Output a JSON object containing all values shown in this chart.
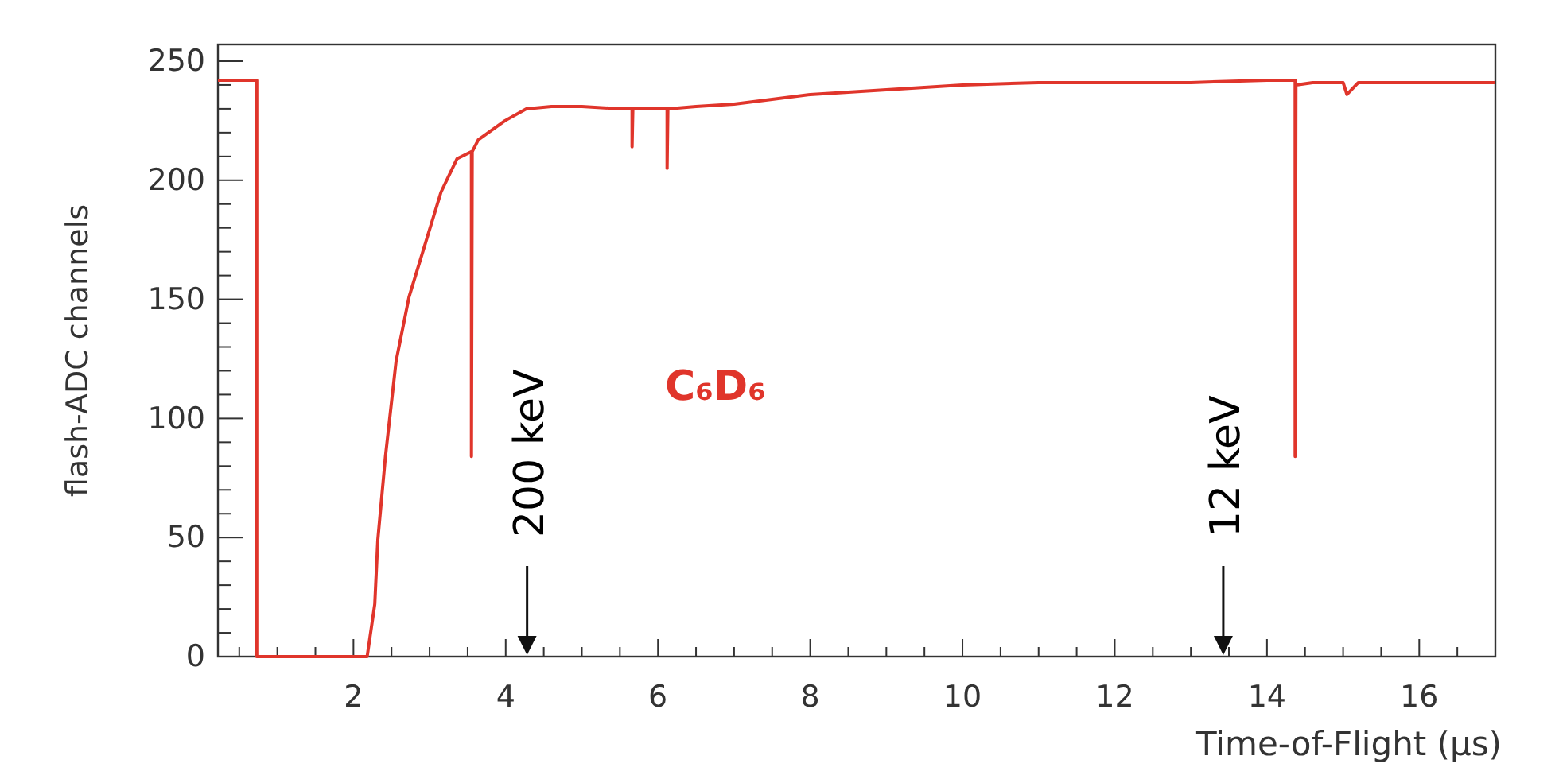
{
  "chart_data": {
    "type": "line",
    "xlabel": "Time-of-Flight (μs)",
    "ylabel": "flash-ADC channels",
    "xlim": [
      0.22,
      17
    ],
    "ylim": [
      0,
      257
    ],
    "xticks": [
      {
        "value": 0.5,
        "label": null
      },
      {
        "value": 1,
        "label": null
      },
      {
        "value": 1.5,
        "label": null
      },
      2,
      {
        "value": 2.5,
        "label": null
      },
      {
        "value": 3,
        "label": null
      },
      {
        "value": 3.5,
        "label": null
      },
      4,
      {
        "value": 4.5,
        "label": null
      },
      {
        "value": 5,
        "label": null
      },
      {
        "value": 5.5,
        "label": null
      },
      6,
      {
        "value": 6.5,
        "label": null
      },
      {
        "value": 7,
        "label": null
      },
      {
        "value": 7.5,
        "label": null
      },
      8,
      {
        "value": 8.5,
        "label": null
      },
      {
        "value": 9,
        "label": null
      },
      {
        "value": 9.5,
        "label": null
      },
      10,
      {
        "value": 10.5,
        "label": null
      },
      {
        "value": 11,
        "label": null
      },
      {
        "value": 11.5,
        "label": null
      },
      12,
      {
        "value": 12.5,
        "label": null
      },
      {
        "value": 13,
        "label": null
      },
      {
        "value": 13.5,
        "label": null
      },
      14,
      {
        "value": 14.5,
        "label": null
      },
      {
        "value": 15,
        "label": null
      },
      {
        "value": 15.5,
        "label": null
      },
      16,
      {
        "value": 16.5,
        "label": null
      },
      {
        "value": 17,
        "label": null
      }
    ],
    "yticks": [
      0,
      {
        "value": 10,
        "label": null
      },
      {
        "value": 20,
        "label": null
      },
      {
        "value": 30,
        "label": null
      },
      {
        "value": 40,
        "label": null
      },
      50,
      {
        "value": 60,
        "label": null
      },
      {
        "value": 70,
        "label": null
      },
      {
        "value": 80,
        "label": null
      },
      {
        "value": 90,
        "label": null
      },
      100,
      {
        "value": 110,
        "label": null
      },
      {
        "value": 120,
        "label": null
      },
      {
        "value": 130,
        "label": null
      },
      {
        "value": 140,
        "label": null
      },
      150,
      {
        "value": 160,
        "label": null
      },
      {
        "value": 170,
        "label": null
      },
      {
        "value": 180,
        "label": null
      },
      {
        "value": 190,
        "label": null
      },
      200,
      {
        "value": 210,
        "label": null
      },
      {
        "value": 220,
        "label": null
      },
      {
        "value": 230,
        "label": null
      },
      {
        "value": 240,
        "label": null
      },
      250
    ],
    "grid": false,
    "legend": false,
    "marker": "none",
    "line_style": "solid",
    "series": [
      {
        "name": "C₆D₆",
        "color": "#e0352b",
        "x": [
          0.22,
          0.73,
          0.73,
          2.18,
          2.28,
          2.32,
          2.42,
          2.56,
          2.73,
          2.94,
          3.15,
          3.36,
          3.55,
          3.55,
          3.56,
          3.64,
          3.99,
          4.27,
          4.6,
          5,
          5.5,
          5.66,
          5.66,
          5.67,
          6,
          6.12,
          6.12,
          6.13,
          6.5,
          7,
          7.5,
          8,
          9,
          10,
          11,
          12,
          13,
          14,
          14.37,
          14.37,
          14.38,
          14.6,
          15,
          15.05,
          15.2,
          16,
          17
        ],
        "values": [
          242,
          242,
          0,
          0,
          22,
          49,
          84,
          124,
          151,
          173,
          195,
          209,
          212,
          84,
          212,
          217,
          225,
          230,
          231,
          231,
          230,
          230,
          214,
          230,
          230,
          230,
          205,
          230,
          231,
          232,
          234,
          236,
          238,
          240,
          241,
          241,
          241,
          242,
          242,
          84,
          240,
          241,
          241,
          236,
          241,
          241,
          241
        ]
      }
    ],
    "annotations": [
      "200 keV",
      "12 keV"
    ]
  }
}
